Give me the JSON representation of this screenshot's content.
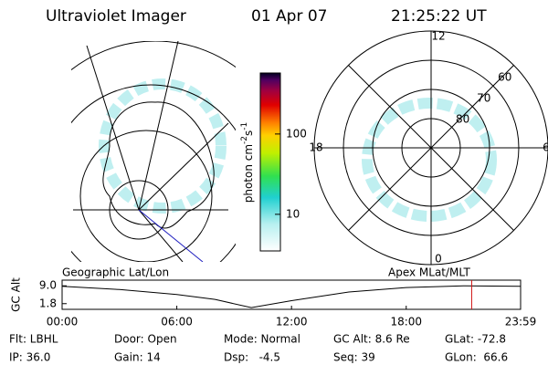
{
  "header": {
    "title": "Ultraviolet Imager",
    "date": "01 Apr 07",
    "time": "21:25:22 UT"
  },
  "left_panel": {
    "label": "Geographic Lat/Lon"
  },
  "right_panel": {
    "label": "Apex MLat/MLT",
    "mlt_labels": [
      12,
      18,
      6,
      0
    ],
    "lat_rings": [
      80,
      70,
      60
    ],
    "lat_limit": 50
  },
  "colorbar": {
    "label": "photon cm",
    "exp1": "-2",
    "unit2": "s",
    "exp2": "-1",
    "log": true,
    "clim": [
      3.5,
      575
    ],
    "ticks": [
      10,
      100
    ]
  },
  "altitude": {
    "axis_label": "GC Alt",
    "xlim": [
      0,
      23.983
    ],
    "xticks": [
      {
        "value": 0,
        "label": "00:00"
      },
      {
        "value": 6,
        "label": "06:00"
      },
      {
        "value": 12,
        "label": "12:00"
      },
      {
        "value": 18,
        "label": "18:00"
      },
      {
        "value": 23.983,
        "label": "23:59"
      }
    ],
    "ylim": [
      -0.5,
      11.3
    ],
    "yticks": [
      {
        "value": 9,
        "label": "9.0"
      },
      {
        "value": 1.8,
        "label": "1.8"
      }
    ],
    "x": [
      0,
      3,
      6,
      8,
      9.9,
      12,
      15,
      18,
      21,
      23.983
    ],
    "values": [
      8.8,
      7.5,
      5.5,
      3.5,
      0.2,
      3.0,
      6.5,
      8.3,
      9.0,
      8.8
    ],
    "color": "#000000",
    "marker": 21.423,
    "marker_color": "#d01010"
  },
  "footer": {
    "rows": [
      [
        "Flt: LBHL",
        "Door: Open",
        "Mode: Normal",
        "GC Alt: 8.6 Re",
        "GLat: -72.8"
      ],
      [
        "IP: 36.0",
        "Gain: 14",
        "Dsp:   -4.5",
        "Seq: 39",
        "GLon:  66.6"
      ]
    ]
  }
}
